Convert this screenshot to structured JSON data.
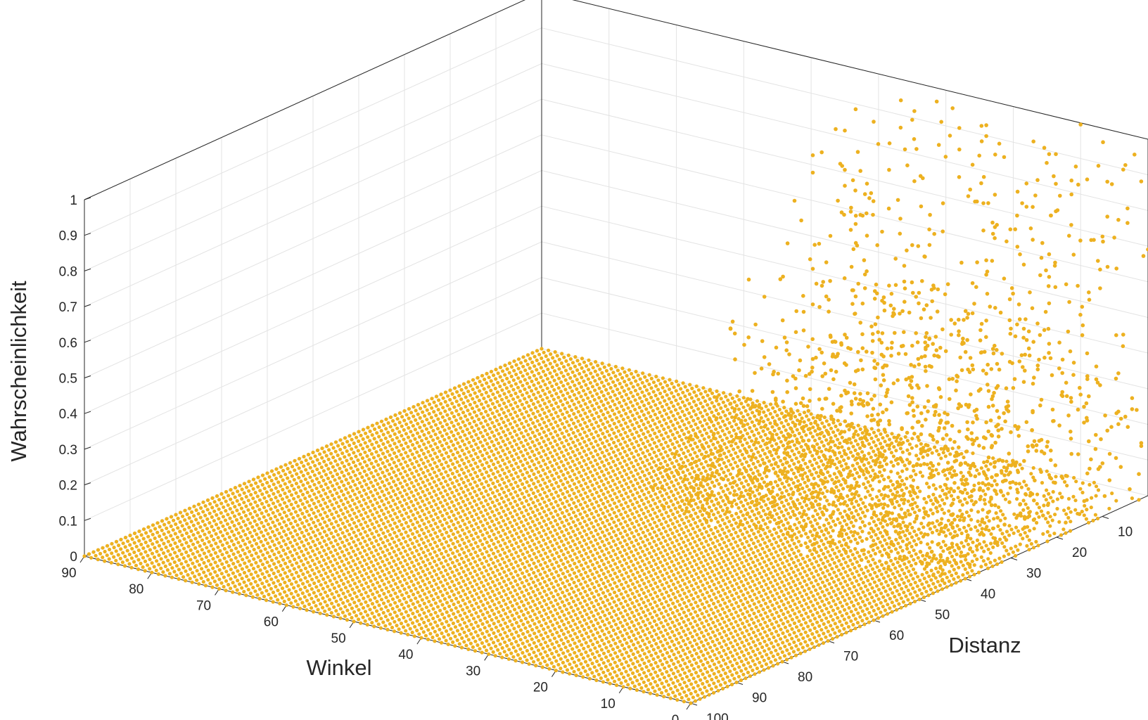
{
  "chart_data": {
    "type": "scatter3d",
    "title": "",
    "xlabel": "Winkel",
    "ylabel": "Distanz",
    "zlabel": "Wahrscheinlichkeit",
    "xlim": [
      0,
      90
    ],
    "ylim": [
      0,
      100
    ],
    "zlim": [
      0,
      1
    ],
    "x_ticks": [
      "0",
      "10",
      "20",
      "30",
      "40",
      "50",
      "60",
      "70",
      "80",
      "90"
    ],
    "y_ticks": [
      "10",
      "20",
      "30",
      "40",
      "50",
      "60",
      "70",
      "80",
      "90",
      "100"
    ],
    "z_ticks": [
      "0",
      "0.1",
      "0.2",
      "0.3",
      "0.4",
      "0.5",
      "0.6",
      "0.7",
      "0.8",
      "0.9",
      "1"
    ],
    "grid": true,
    "marker_color": "#EDB120",
    "grid_step": {
      "x": 1,
      "y": 1
    },
    "description_of_values": "Dense grid of points at probability 0 across the whole angle-distance plane; scattered nonzero probabilities (mostly 0.05-0.95) at small distances (about 0-45) and angles below about 45.",
    "nonzero_points": [
      [
        2,
        2,
        0.93
      ],
      [
        4,
        3,
        0.88
      ],
      [
        6,
        1,
        0.97
      ],
      [
        8,
        4,
        0.91
      ],
      [
        10,
        2,
        0.85
      ],
      [
        12,
        5,
        0.95
      ],
      [
        14,
        1,
        0.9
      ],
      [
        16,
        3,
        0.82
      ],
      [
        18,
        6,
        0.94
      ],
      [
        20,
        2,
        0.87
      ],
      [
        22,
        4,
        0.96
      ],
      [
        24,
        1,
        0.89
      ],
      [
        26,
        5,
        0.92
      ],
      [
        28,
        3,
        0.84
      ],
      [
        30,
        2,
        0.98
      ],
      [
        32,
        6,
        0.86
      ],
      [
        34,
        4,
        0.9
      ],
      [
        36,
        1,
        0.95
      ],
      [
        38,
        3,
        0.83
      ],
      [
        40,
        5,
        0.93
      ],
      [
        3,
        8,
        0.75
      ],
      [
        7,
        10,
        0.68
      ],
      [
        11,
        9,
        0.72
      ],
      [
        15,
        12,
        0.66
      ],
      [
        19,
        8,
        0.78
      ],
      [
        23,
        11,
        0.7
      ],
      [
        27,
        13,
        0.64
      ],
      [
        31,
        9,
        0.74
      ],
      [
        35,
        10,
        0.69
      ],
      [
        39,
        12,
        0.62
      ],
      [
        5,
        15,
        0.58
      ],
      [
        9,
        17,
        0.55
      ],
      [
        13,
        16,
        0.6
      ],
      [
        17,
        18,
        0.52
      ],
      [
        21,
        15,
        0.57
      ],
      [
        25,
        19,
        0.5
      ],
      [
        29,
        17,
        0.54
      ],
      [
        33,
        16,
        0.48
      ],
      [
        37,
        18,
        0.53
      ],
      [
        41,
        15,
        0.46
      ],
      [
        2,
        22,
        0.45
      ],
      [
        6,
        24,
        0.42
      ],
      [
        10,
        21,
        0.48
      ],
      [
        14,
        25,
        0.38
      ],
      [
        18,
        23,
        0.44
      ],
      [
        22,
        26,
        0.36
      ],
      [
        26,
        22,
        0.41
      ],
      [
        30,
        24,
        0.35
      ],
      [
        34,
        27,
        0.33
      ],
      [
        38,
        23,
        0.39
      ],
      [
        4,
        30,
        0.32
      ],
      [
        8,
        32,
        0.28
      ],
      [
        12,
        29,
        0.34
      ],
      [
        16,
        33,
        0.26
      ],
      [
        20,
        31,
        0.3
      ],
      [
        24,
        34,
        0.24
      ],
      [
        28,
        30,
        0.29
      ],
      [
        32,
        35,
        0.22
      ],
      [
        36,
        32,
        0.27
      ],
      [
        40,
        36,
        0.2
      ],
      [
        3,
        38,
        0.22
      ],
      [
        9,
        40,
        0.18
      ],
      [
        15,
        37,
        0.2
      ],
      [
        21,
        41,
        0.15
      ],
      [
        27,
        39,
        0.17
      ],
      [
        33,
        42,
        0.13
      ],
      [
        39,
        38,
        0.16
      ],
      [
        7,
        44,
        0.12
      ],
      [
        13,
        45,
        0.1
      ],
      [
        19,
        43,
        0.11
      ]
    ]
  }
}
